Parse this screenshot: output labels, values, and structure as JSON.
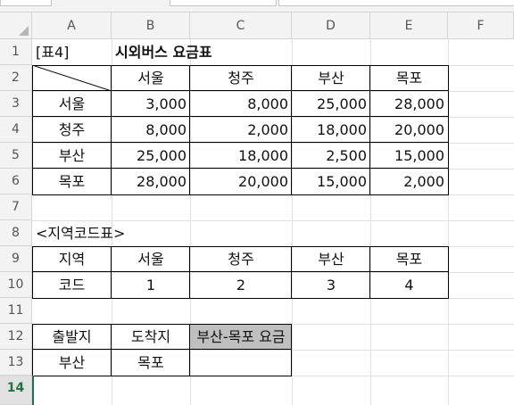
{
  "columns": [
    "A",
    "B",
    "C",
    "D",
    "E",
    "F"
  ],
  "rows": [
    "1",
    "2",
    "3",
    "4",
    "5",
    "6",
    "7",
    "8",
    "9",
    "10",
    "11",
    "12",
    "13",
    "14"
  ],
  "selected_row": "14",
  "title_label": "[표4]",
  "title": "시외버스 요금표",
  "fare_table": {
    "cities": [
      "서울",
      "청주",
      "부산",
      "목포"
    ],
    "rows": [
      {
        "city": "서울",
        "values": [
          "3,000",
          "8,000",
          "25,000",
          "28,000"
        ]
      },
      {
        "city": "청주",
        "values": [
          "8,000",
          "2,000",
          "18,000",
          "20,000"
        ]
      },
      {
        "city": "부산",
        "values": [
          "25,000",
          "18,000",
          "2,500",
          "15,000"
        ]
      },
      {
        "city": "목포",
        "values": [
          "28,000",
          "20,000",
          "15,000",
          "2,000"
        ]
      }
    ]
  },
  "code_table": {
    "title": "<지역코드표>",
    "region_label": "지역",
    "code_label": "코드",
    "regions": [
      "서울",
      "청주",
      "부산",
      "목포"
    ],
    "codes": [
      "1",
      "2",
      "3",
      "4"
    ]
  },
  "query": {
    "origin_label": "출발지",
    "destination_label": "도착지",
    "result_label": "부산-목포 요금",
    "origin": "부산",
    "destination": "목포",
    "result": ""
  },
  "colors": {
    "result_label_fill": "#bfbfbf",
    "selection_accent": "#217346"
  }
}
